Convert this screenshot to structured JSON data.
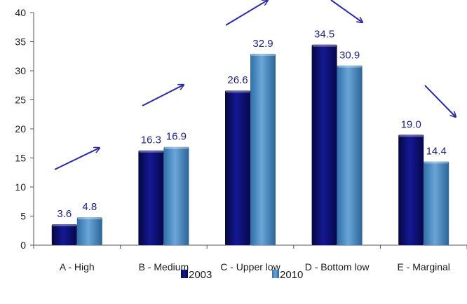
{
  "chart_data": {
    "type": "bar",
    "categories": [
      "A - High",
      "B - Medium",
      "C - Upper low",
      "D - Bottom low",
      "E - Marginal"
    ],
    "series": [
      {
        "name": "2003",
        "values": [
          3.6,
          16.3,
          26.6,
          34.5,
          19.0
        ],
        "labels": [
          "3.6",
          "16.3",
          "26.6",
          "34.5",
          "19.0"
        ],
        "color": "#0d0f6e"
      },
      {
        "name": "2010",
        "values": [
          4.8,
          16.9,
          32.9,
          30.9,
          14.4
        ],
        "labels": [
          "4.8",
          "16.9",
          "32.9",
          "30.9",
          "14.4"
        ],
        "color": "#4f92c8"
      }
    ],
    "ylim": [
      0,
      40
    ],
    "yticks": [
      0,
      5,
      10,
      15,
      20,
      25,
      30,
      35,
      40
    ],
    "legend_position": "bottom",
    "grid": false,
    "annotations": {
      "type": "trend-arrows",
      "color": "#2a2aa8",
      "directions": [
        "up",
        "up",
        "up",
        "down",
        "down"
      ]
    }
  }
}
